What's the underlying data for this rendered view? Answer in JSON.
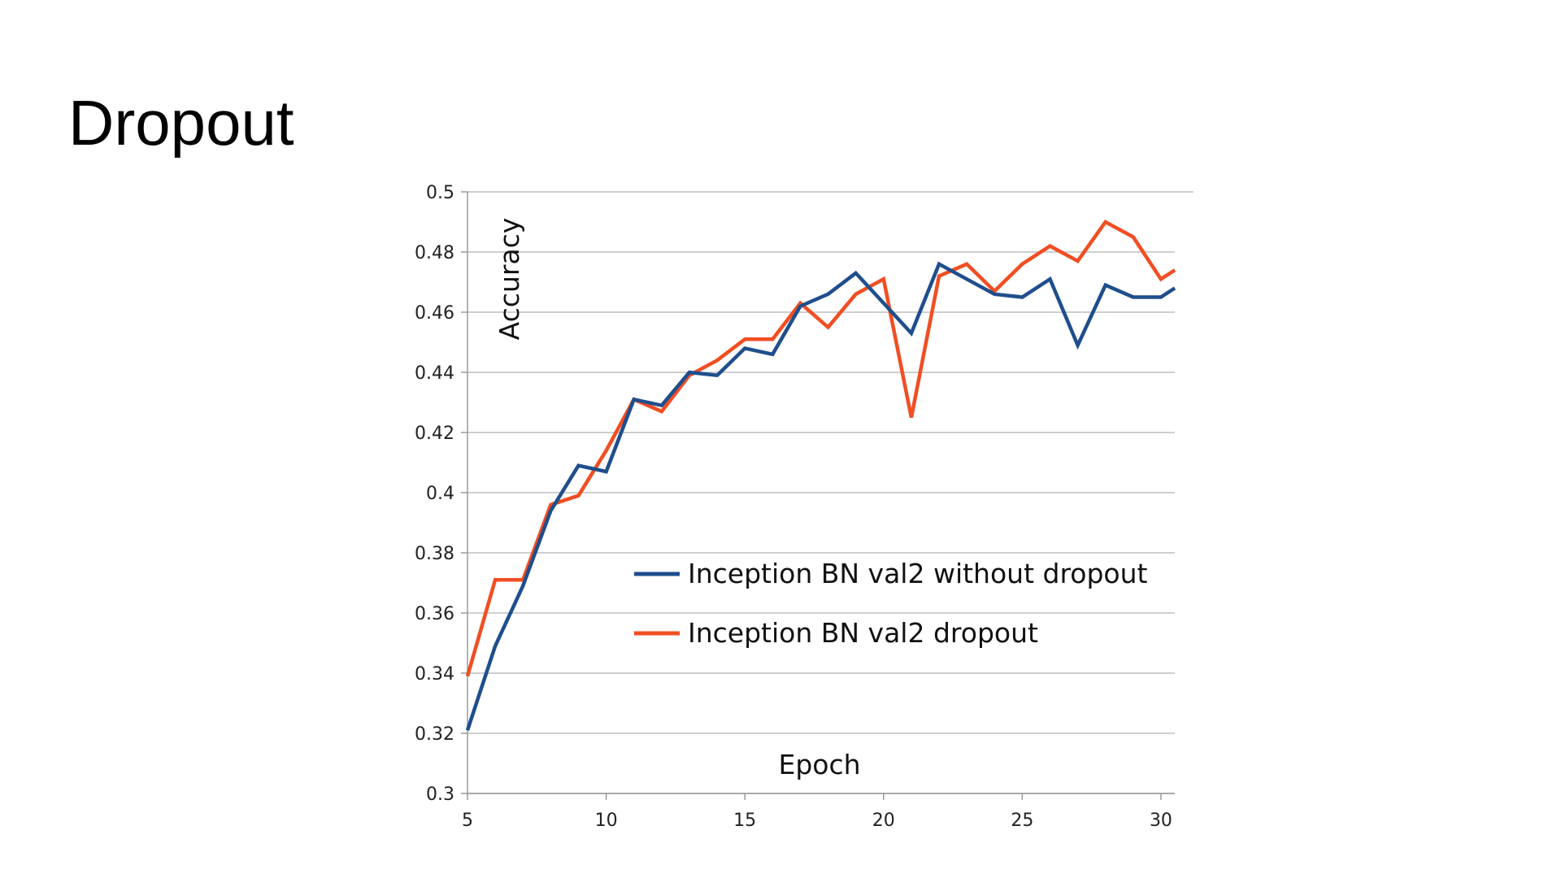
{
  "slide": {
    "title": "Dropout"
  },
  "chart_data": {
    "type": "line",
    "title": "",
    "xlabel": "Epoch",
    "ylabel": "Accuracy",
    "xlim": [
      5,
      30.5
    ],
    "ylim": [
      0.3,
      0.5
    ],
    "x_ticks": [
      5,
      10,
      15,
      20,
      25,
      30
    ],
    "x_tick_labels": [
      "5",
      "10",
      "15",
      "20",
      "25",
      "30"
    ],
    "y_ticks": [
      0.3,
      0.32,
      0.34,
      0.36,
      0.38,
      0.4,
      0.42,
      0.44,
      0.46,
      0.48,
      0.5
    ],
    "y_tick_labels": [
      "0.3",
      "0.32",
      "0.34",
      "0.36",
      "0.38",
      "0.4",
      "0.42",
      "0.44",
      "0.46",
      "0.48",
      "0.5"
    ],
    "grid": true,
    "legend_position": "center-right",
    "x": [
      5,
      6,
      7,
      8,
      9,
      10,
      11,
      12,
      13,
      14,
      15,
      16,
      17,
      18,
      19,
      20,
      21,
      22,
      23,
      24,
      25,
      26,
      27,
      28,
      29,
      30,
      30.5
    ],
    "series": [
      {
        "name": "Inception BN val2 without dropout",
        "color": "#1f4e8c",
        "values": [
          0.321,
          0.349,
          0.369,
          0.394,
          0.409,
          0.407,
          0.431,
          0.429,
          0.44,
          0.439,
          0.448,
          0.446,
          0.462,
          0.466,
          0.473,
          0.463,
          0.453,
          0.476,
          0.471,
          0.466,
          0.465,
          0.471,
          0.449,
          0.469,
          0.465,
          0.465,
          0.468
        ]
      },
      {
        "name": "Inception BN val2 dropout",
        "color": "#f04e23",
        "values": [
          0.339,
          0.371,
          0.371,
          0.396,
          0.399,
          0.414,
          0.431,
          0.427,
          0.439,
          0.444,
          0.451,
          0.451,
          0.463,
          0.455,
          0.466,
          0.471,
          0.425,
          0.472,
          0.476,
          0.467,
          0.476,
          0.482,
          0.477,
          0.49,
          0.485,
          0.471,
          0.474
        ]
      }
    ]
  }
}
